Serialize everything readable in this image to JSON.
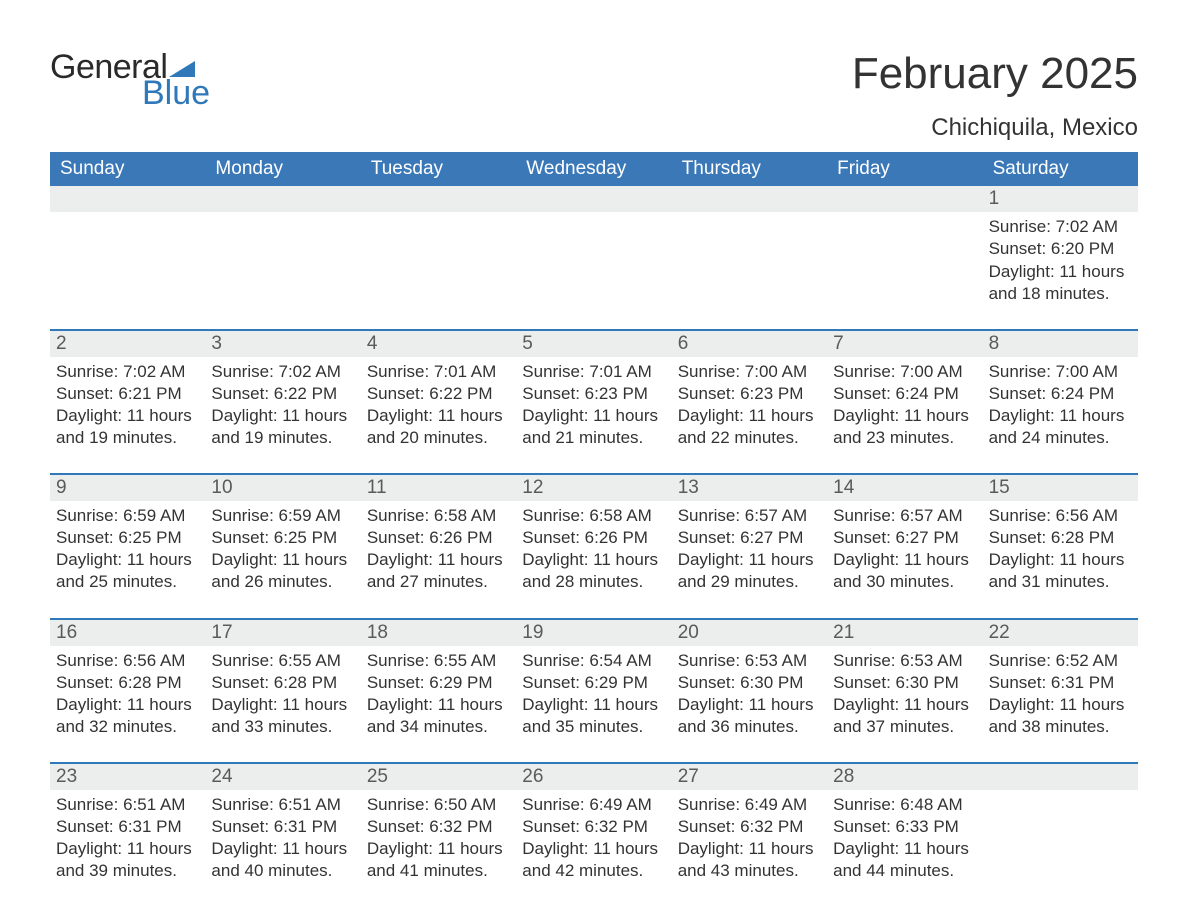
{
  "brand": {
    "word1": "General",
    "word2": "Blue",
    "logo_color": "#2f78ba"
  },
  "title": "February 2025",
  "location": "Chichiquila, Mexico",
  "colors": {
    "header_bg": "#3b78b8",
    "header_text": "#ffffff",
    "daynum_bg": "#eceded",
    "rule": "#2f78ba",
    "body_text": "#333333"
  },
  "days_of_week": [
    "Sunday",
    "Monday",
    "Tuesday",
    "Wednesday",
    "Thursday",
    "Friday",
    "Saturday"
  ],
  "weeks": [
    [
      null,
      null,
      null,
      null,
      null,
      null,
      {
        "n": "1",
        "sunrise": "7:02 AM",
        "sunset": "6:20 PM",
        "daylight": "11 hours and 18 minutes."
      }
    ],
    [
      {
        "n": "2",
        "sunrise": "7:02 AM",
        "sunset": "6:21 PM",
        "daylight": "11 hours and 19 minutes."
      },
      {
        "n": "3",
        "sunrise": "7:02 AM",
        "sunset": "6:22 PM",
        "daylight": "11 hours and 19 minutes."
      },
      {
        "n": "4",
        "sunrise": "7:01 AM",
        "sunset": "6:22 PM",
        "daylight": "11 hours and 20 minutes."
      },
      {
        "n": "5",
        "sunrise": "7:01 AM",
        "sunset": "6:23 PM",
        "daylight": "11 hours and 21 minutes."
      },
      {
        "n": "6",
        "sunrise": "7:00 AM",
        "sunset": "6:23 PM",
        "daylight": "11 hours and 22 minutes."
      },
      {
        "n": "7",
        "sunrise": "7:00 AM",
        "sunset": "6:24 PM",
        "daylight": "11 hours and 23 minutes."
      },
      {
        "n": "8",
        "sunrise": "7:00 AM",
        "sunset": "6:24 PM",
        "daylight": "11 hours and 24 minutes."
      }
    ],
    [
      {
        "n": "9",
        "sunrise": "6:59 AM",
        "sunset": "6:25 PM",
        "daylight": "11 hours and 25 minutes."
      },
      {
        "n": "10",
        "sunrise": "6:59 AM",
        "sunset": "6:25 PM",
        "daylight": "11 hours and 26 minutes."
      },
      {
        "n": "11",
        "sunrise": "6:58 AM",
        "sunset": "6:26 PM",
        "daylight": "11 hours and 27 minutes."
      },
      {
        "n": "12",
        "sunrise": "6:58 AM",
        "sunset": "6:26 PM",
        "daylight": "11 hours and 28 minutes."
      },
      {
        "n": "13",
        "sunrise": "6:57 AM",
        "sunset": "6:27 PM",
        "daylight": "11 hours and 29 minutes."
      },
      {
        "n": "14",
        "sunrise": "6:57 AM",
        "sunset": "6:27 PM",
        "daylight": "11 hours and 30 minutes."
      },
      {
        "n": "15",
        "sunrise": "6:56 AM",
        "sunset": "6:28 PM",
        "daylight": "11 hours and 31 minutes."
      }
    ],
    [
      {
        "n": "16",
        "sunrise": "6:56 AM",
        "sunset": "6:28 PM",
        "daylight": "11 hours and 32 minutes."
      },
      {
        "n": "17",
        "sunrise": "6:55 AM",
        "sunset": "6:28 PM",
        "daylight": "11 hours and 33 minutes."
      },
      {
        "n": "18",
        "sunrise": "6:55 AM",
        "sunset": "6:29 PM",
        "daylight": "11 hours and 34 minutes."
      },
      {
        "n": "19",
        "sunrise": "6:54 AM",
        "sunset": "6:29 PM",
        "daylight": "11 hours and 35 minutes."
      },
      {
        "n": "20",
        "sunrise": "6:53 AM",
        "sunset": "6:30 PM",
        "daylight": "11 hours and 36 minutes."
      },
      {
        "n": "21",
        "sunrise": "6:53 AM",
        "sunset": "6:30 PM",
        "daylight": "11 hours and 37 minutes."
      },
      {
        "n": "22",
        "sunrise": "6:52 AM",
        "sunset": "6:31 PM",
        "daylight": "11 hours and 38 minutes."
      }
    ],
    [
      {
        "n": "23",
        "sunrise": "6:51 AM",
        "sunset": "6:31 PM",
        "daylight": "11 hours and 39 minutes."
      },
      {
        "n": "24",
        "sunrise": "6:51 AM",
        "sunset": "6:31 PM",
        "daylight": "11 hours and 40 minutes."
      },
      {
        "n": "25",
        "sunrise": "6:50 AM",
        "sunset": "6:32 PM",
        "daylight": "11 hours and 41 minutes."
      },
      {
        "n": "26",
        "sunrise": "6:49 AM",
        "sunset": "6:32 PM",
        "daylight": "11 hours and 42 minutes."
      },
      {
        "n": "27",
        "sunrise": "6:49 AM",
        "sunset": "6:32 PM",
        "daylight": "11 hours and 43 minutes."
      },
      {
        "n": "28",
        "sunrise": "6:48 AM",
        "sunset": "6:33 PM",
        "daylight": "11 hours and 44 minutes."
      },
      null
    ]
  ],
  "labels": {
    "sunrise": "Sunrise: ",
    "sunset": "Sunset: ",
    "daylight": "Daylight: "
  }
}
